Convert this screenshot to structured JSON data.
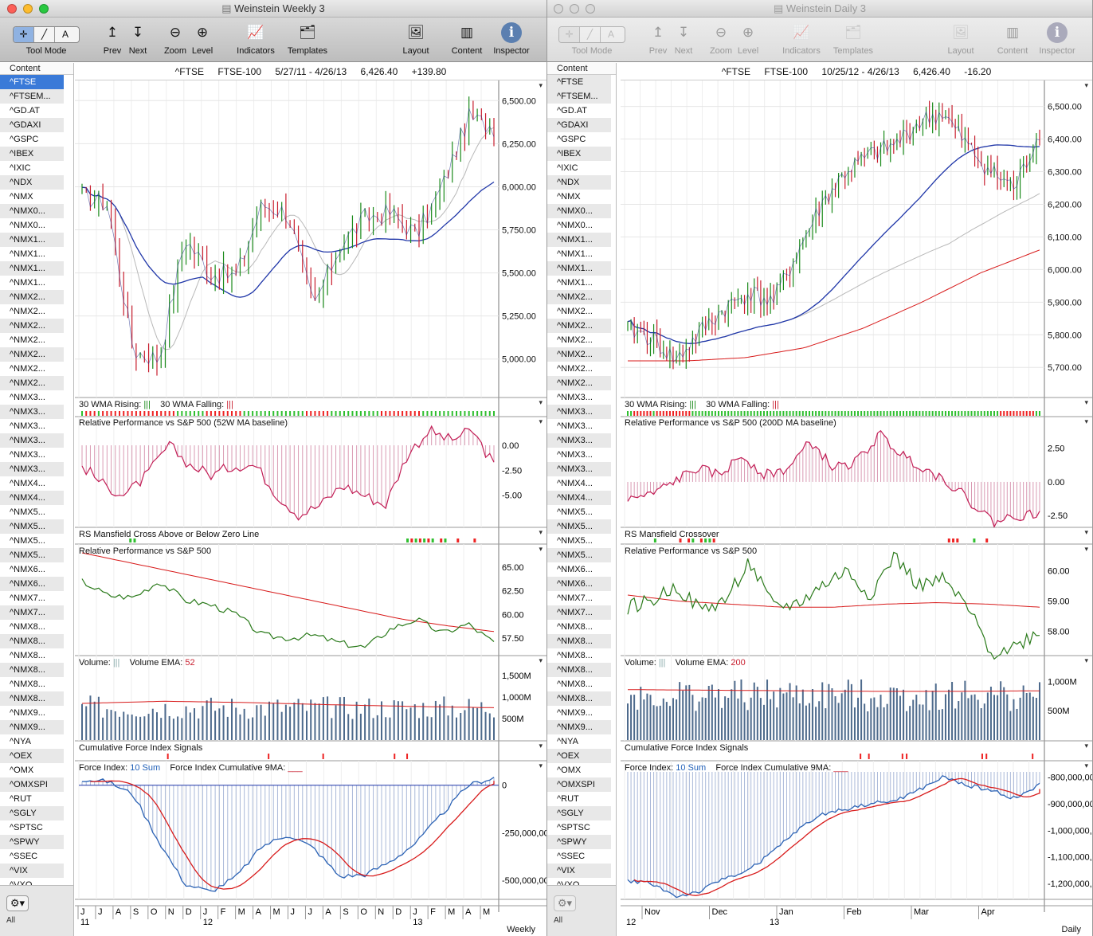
{
  "windows": [
    {
      "title": "Weinstein Weekly 3",
      "active": true,
      "toolbar": {
        "tool_mode": "Tool Mode",
        "prev": "Prev",
        "next": "Next",
        "zoom": "Zoom",
        "level": "Level",
        "indicators": "Indicators",
        "templates": "Templates",
        "layout": "Layout",
        "content": "Content",
        "inspector": "Inspector"
      },
      "sidebar_header": "Content",
      "header": {
        "symbol": "^FTSE",
        "name": "FTSE-100",
        "range": "5/27/11 - 4/26/13",
        "last": "6,426.40",
        "change": "+139.80"
      },
      "price_ticks": [
        "6,500.00",
        "6,250.00",
        "6,000.00",
        "5,750.00",
        "5,500.00",
        "5,250.00",
        "5,000.00"
      ],
      "panels": {
        "wma_label": "30 WMA Rising:",
        "wma_falling": "30 WMA Falling:",
        "relperf_label": "Relative Performance vs S&P 500 (52W MA baseline)",
        "relperf_ticks": [
          "0.00",
          "-2.50",
          "-5.00"
        ],
        "rs_label": "RS Mansfield Cross Above or Below Zero Line",
        "rs2_label": "Relative Performance vs S&P 500",
        "rs2_ticks": [
          "65.00",
          "62.50",
          "60.00",
          "57.50"
        ],
        "vol_label": "Volume:",
        "vol_ema": "Volume EMA:",
        "vol_ema_val": "52",
        "vol_ticks": [
          "1,500M",
          "1,000M",
          "500M"
        ],
        "cfi_label": "Cumulative Force Index Signals",
        "fi_label": "Force Index:",
        "fi_sum": "10 Sum",
        "fi_cum": "Force Index Cumulative 9MA:",
        "fi_ticks": [
          "0",
          "-250,000,00",
          "-500,000,00"
        ]
      },
      "x_months": [
        "J",
        "J",
        "A",
        "S",
        "O",
        "N",
        "D",
        "J",
        "F",
        "M",
        "A",
        "M",
        "J",
        "J",
        "A",
        "S",
        "O",
        "N",
        "D",
        "J",
        "F",
        "M",
        "A",
        "M"
      ],
      "x_years": [
        "11",
        "12",
        "13"
      ],
      "period": "Weekly"
    },
    {
      "title": "Weinstein Daily 3",
      "active": false,
      "toolbar": {
        "tool_mode": "Tool Mode",
        "prev": "Prev",
        "next": "Next",
        "zoom": "Zoom",
        "level": "Level",
        "indicators": "Indicators",
        "templates": "Templates",
        "layout": "Layout",
        "content": "Content",
        "inspector": "Inspector"
      },
      "sidebar_header": "Content",
      "header": {
        "symbol": "^FTSE",
        "name": "FTSE-100",
        "range": "10/25/12 - 4/26/13",
        "last": "6,426.40",
        "change": "-16.20"
      },
      "price_ticks": [
        "6,500.00",
        "6,400.00",
        "6,300.00",
        "6,200.00",
        "6,100.00",
        "6,000.00",
        "5,900.00",
        "5,800.00",
        "5,700.00"
      ],
      "panels": {
        "wma_label": "30 WMA Rising:",
        "wma_falling": "30 WMA Falling:",
        "relperf_label": "Relative Performance vs S&P 500 (200D MA baseline)",
        "relperf_ticks": [
          "2.50",
          "0.00",
          "-2.50"
        ],
        "rs_label": "RS Mansfield Crossover",
        "rs2_label": "Relative Performance vs S&P 500",
        "rs2_ticks": [
          "60.00",
          "59.00",
          "58.00"
        ],
        "vol_label": "Volume:",
        "vol_ema": "Volume EMA:",
        "vol_ema_val": "200",
        "vol_ticks": [
          "1,000M",
          "500M"
        ],
        "cfi_label": "Cumulative Force Index Signals",
        "fi_label": "Force Index:",
        "fi_sum": "10 Sum",
        "fi_cum": "Force Index Cumulative 9MA:",
        "fi_ticks": [
          "-800,000,00",
          "-900,000,00",
          "-1,000,000,",
          "-1,100,000,",
          "-1,200,000,"
        ]
      },
      "x_months": [
        "Nov",
        "Dec",
        "Jan",
        "Feb",
        "Mar",
        "Apr"
      ],
      "x_years": [
        "12",
        "13"
      ],
      "period": "Daily"
    }
  ],
  "symbols": [
    "^FTSE",
    "^FTSEM...",
    "^GD.AT",
    "^GDAXI",
    "^GSPC",
    "^IBEX",
    "^IXIC",
    "^NDX",
    "^NMX",
    "^NMX0...",
    "^NMX0...",
    "^NMX1...",
    "^NMX1...",
    "^NMX1...",
    "^NMX1...",
    "^NMX2...",
    "^NMX2...",
    "^NMX2...",
    "^NMX2...",
    "^NMX2...",
    "^NMX2...",
    "^NMX2...",
    "^NMX3...",
    "^NMX3...",
    "^NMX3...",
    "^NMX3...",
    "^NMX3...",
    "^NMX3...",
    "^NMX4...",
    "^NMX4...",
    "^NMX5...",
    "^NMX5...",
    "^NMX5...",
    "^NMX5...",
    "^NMX6...",
    "^NMX6...",
    "^NMX7...",
    "^NMX7...",
    "^NMX8...",
    "^NMX8...",
    "^NMX8...",
    "^NMX8...",
    "^NMX8...",
    "^NMX8...",
    "^NMX9...",
    "^NMX9...",
    "^NYA",
    "^OEX",
    "^OMX",
    "^OMXSPI",
    "^RUT",
    "^SGLY",
    "^SPTSC",
    "^SPWY",
    "^SSEC",
    "^VIX",
    "^VXO"
  ],
  "sidebar_footer_label": "All",
  "colors": {
    "up": "#1a8a1a",
    "down": "#c81e2e",
    "ma30": "#1f36a8",
    "ma10": "#b8b8b8",
    "red_ma": "#d81b1b",
    "relperf": "#c21d55",
    "vol": "#4d6a8c",
    "sidebar_sel": "#3a7ad8"
  }
}
